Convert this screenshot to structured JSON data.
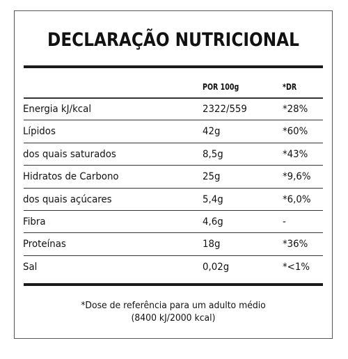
{
  "title": "DECLARAÇÃO NUTRICIONAL",
  "columns": {
    "per100": "POR 100g",
    "dr": "*DR"
  },
  "rows": [
    {
      "label": "Energia kJ/kcal",
      "value": "2322/559",
      "dr": "*28%"
    },
    {
      "label": "Lípidos",
      "value": "42g",
      "dr": "*60%"
    },
    {
      "label": "dos quais saturados",
      "value": "8,5g",
      "dr": "*43%"
    },
    {
      "label": "Hidratos de Carbono",
      "value": "25g",
      "dr": "*9,6%"
    },
    {
      "label": "dos quais açúcares",
      "value": "5,4g",
      "dr": "*6,0%"
    },
    {
      "label": "Fibra",
      "value": "4,6g",
      "dr": "-"
    },
    {
      "label": "Proteínas",
      "value": "18g",
      "dr": "*36%"
    },
    {
      "label": "Sal",
      "value": "0,02g",
      "dr": "*<1%"
    }
  ],
  "footnote": {
    "line1": "*Dose de referência para um adulto médio",
    "line2": "(8400 kJ/2000 kcal)"
  }
}
